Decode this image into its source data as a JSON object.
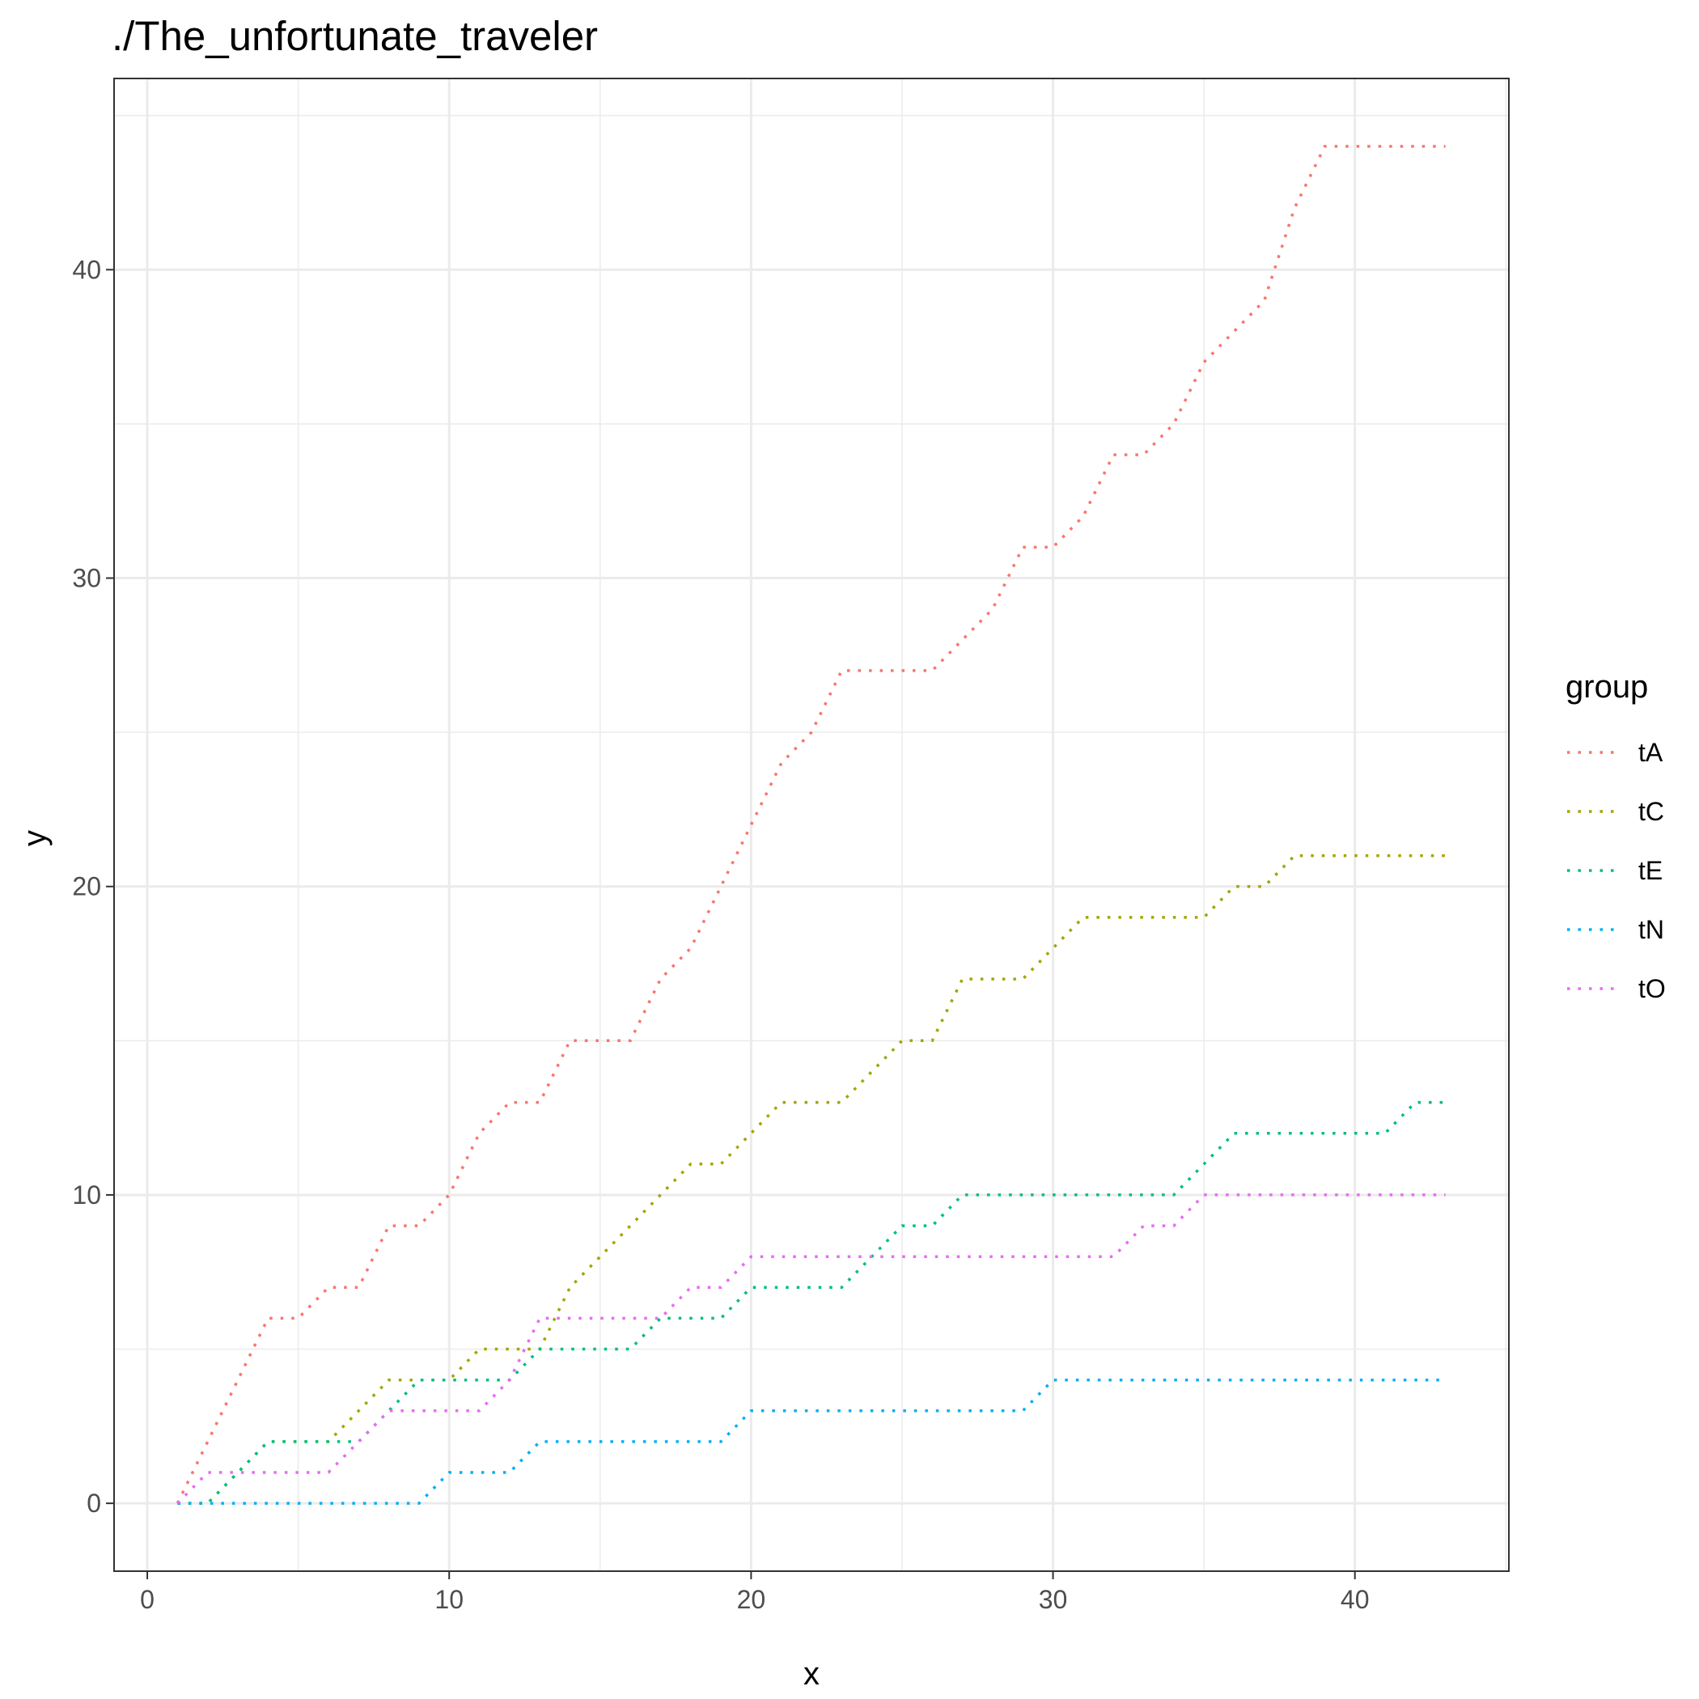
{
  "chart_data": {
    "type": "line",
    "title": "./The_unfortunate_traveler",
    "xlabel": "x",
    "ylabel": "y",
    "xlim": [
      -1.1,
      45.1
    ],
    "ylim": [
      -2.2,
      46.2
    ],
    "x_ticks": [
      0,
      10,
      20,
      30,
      40
    ],
    "y_ticks": [
      0,
      10,
      20,
      30,
      40
    ],
    "x_tick_labels": [
      "0",
      "10",
      "20",
      "30",
      "40"
    ],
    "y_tick_labels": [
      "0",
      "10",
      "20",
      "30",
      "40"
    ],
    "grid": true,
    "line_style": "dotted",
    "legend_title": "group",
    "legend_position": "right",
    "x": [
      1,
      2,
      3,
      4,
      5,
      6,
      7,
      8,
      9,
      10,
      11,
      12,
      13,
      14,
      15,
      16,
      17,
      18,
      19,
      20,
      21,
      22,
      23,
      24,
      25,
      26,
      27,
      28,
      29,
      30,
      31,
      32,
      33,
      34,
      35,
      36,
      37,
      38,
      39,
      40,
      41,
      42,
      43
    ],
    "series": [
      {
        "name": "tA",
        "color": "#F8766D",
        "values": [
          0,
          2,
          4,
          6,
          6,
          7,
          7,
          9,
          9,
          10,
          12,
          13,
          13,
          15,
          15,
          15,
          17,
          18,
          20,
          22,
          24,
          25,
          27,
          27,
          27,
          27,
          28,
          29,
          31,
          31,
          32,
          34,
          34,
          35,
          37,
          38,
          39,
          42,
          44,
          44,
          44,
          44,
          44
        ]
      },
      {
        "name": "tC",
        "color": "#A3A500",
        "values": [
          0,
          0,
          1,
          2,
          2,
          2,
          3,
          4,
          4,
          4,
          5,
          5,
          5,
          7,
          8,
          9,
          10,
          11,
          11,
          12,
          13,
          13,
          13,
          14,
          15,
          15,
          17,
          17,
          17,
          18,
          19,
          19,
          19,
          19,
          19,
          20,
          20,
          21,
          21,
          21,
          21,
          21,
          21
        ]
      },
      {
        "name": "tE",
        "color": "#00BF7D",
        "values": [
          0,
          0,
          1,
          2,
          2,
          2,
          2,
          3,
          4,
          4,
          4,
          4,
          5,
          5,
          5,
          5,
          6,
          6,
          6,
          7,
          7,
          7,
          7,
          8,
          9,
          9,
          10,
          10,
          10,
          10,
          10,
          10,
          10,
          10,
          11,
          12,
          12,
          12,
          12,
          12,
          12,
          13,
          13
        ]
      },
      {
        "name": "tN",
        "color": "#00B0F6",
        "values": [
          0,
          0,
          0,
          0,
          0,
          0,
          0,
          0,
          0,
          1,
          1,
          1,
          2,
          2,
          2,
          2,
          2,
          2,
          2,
          3,
          3,
          3,
          3,
          3,
          3,
          3,
          3,
          3,
          3,
          4,
          4,
          4,
          4,
          4,
          4,
          4,
          4,
          4,
          4,
          4,
          4,
          4,
          4
        ]
      },
      {
        "name": "tO",
        "color": "#E76BF3",
        "values": [
          0,
          1,
          1,
          1,
          1,
          1,
          2,
          3,
          3,
          3,
          3,
          4,
          6,
          6,
          6,
          6,
          6,
          7,
          7,
          8,
          8,
          8,
          8,
          8,
          8,
          8,
          8,
          8,
          8,
          8,
          8,
          8,
          9,
          9,
          10,
          10,
          10,
          10,
          10,
          10,
          10,
          10,
          10
        ]
      }
    ]
  }
}
